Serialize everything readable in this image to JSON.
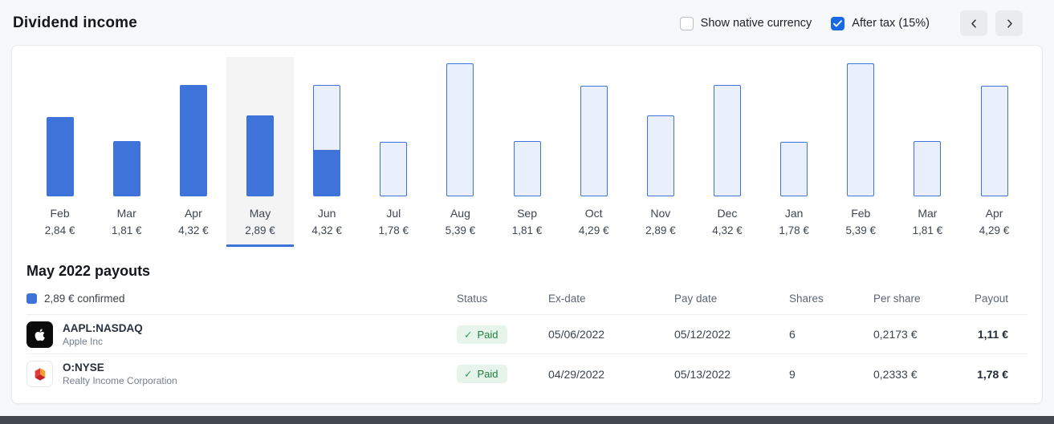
{
  "header": {
    "title": "Dividend income",
    "show_native_currency": {
      "label": "Show native currency",
      "checked": false
    },
    "after_tax": {
      "label": "After tax (15%)",
      "checked": true
    }
  },
  "colors": {
    "bar_solid": "#3E74D9",
    "bar_outline_fill": "#EAF0FB",
    "bar_outline_border": "#3E74D9",
    "checkbox_checked": "#1668E3",
    "paid_badge_bg": "#E7F4EB",
    "paid_badge_text": "#1E7D3B",
    "selected_column_bg": "#F4F4F5",
    "selected_underline": "#3E74D9"
  },
  "chart_data": {
    "type": "bar",
    "title": "",
    "xlabel": "",
    "ylabel": "",
    "categories": [
      "Feb",
      "Mar",
      "Apr",
      "May",
      "Jun",
      "Jul",
      "Aug",
      "Sep",
      "Oct",
      "Nov",
      "Dec",
      "Jan",
      "Feb",
      "Mar",
      "Apr"
    ],
    "values": [
      2.84,
      1.81,
      4.32,
      2.89,
      4.32,
      1.78,
      5.39,
      1.81,
      4.29,
      2.89,
      4.32,
      1.78,
      5.39,
      1.81,
      4.29
    ],
    "value_labels": [
      "2,84 €",
      "1,81 €",
      "4,32 €",
      "2,89 €",
      "4,32 €",
      "1,78 €",
      "5,39 €",
      "1,81 €",
      "4,29 €",
      "2,89 €",
      "4,32 €",
      "1,78 €",
      "5,39 €",
      "1,81 €",
      "4,29 €"
    ],
    "bar_styles": [
      "solid",
      "solid",
      "solid",
      "solid",
      "partial",
      "outline",
      "outline",
      "outline",
      "outline",
      "outline",
      "outline",
      "outline",
      "outline",
      "outline",
      "outline"
    ],
    "partial_fill_fraction": 0.41,
    "selected_index": 3,
    "ylim": [
      0,
      5.39
    ],
    "grid": false,
    "legend_position": "none"
  },
  "payouts": {
    "heading": "May 2022 payouts",
    "legend": {
      "label": "2,89 € confirmed",
      "swatch_color": "#3E74D9"
    },
    "columns": [
      "Status",
      "Ex-date",
      "Pay date",
      "Shares",
      "Per share",
      "Payout"
    ],
    "rows": [
      {
        "ticker": "AAPL:NASDAQ",
        "company": "Apple Inc",
        "logo": "apple-logo",
        "status": "Paid",
        "ex_date": "05/06/2022",
        "pay_date": "05/12/2022",
        "shares": "6",
        "per_share": "0,2173 €",
        "payout": "1,11 €"
      },
      {
        "ticker": "O:NYSE",
        "company": "Realty Income Corporation",
        "logo": "realty-income-logo",
        "status": "Paid",
        "ex_date": "04/29/2022",
        "pay_date": "05/13/2022",
        "shares": "9",
        "per_share": "0,2333 €",
        "payout": "1,78 €"
      }
    ]
  }
}
